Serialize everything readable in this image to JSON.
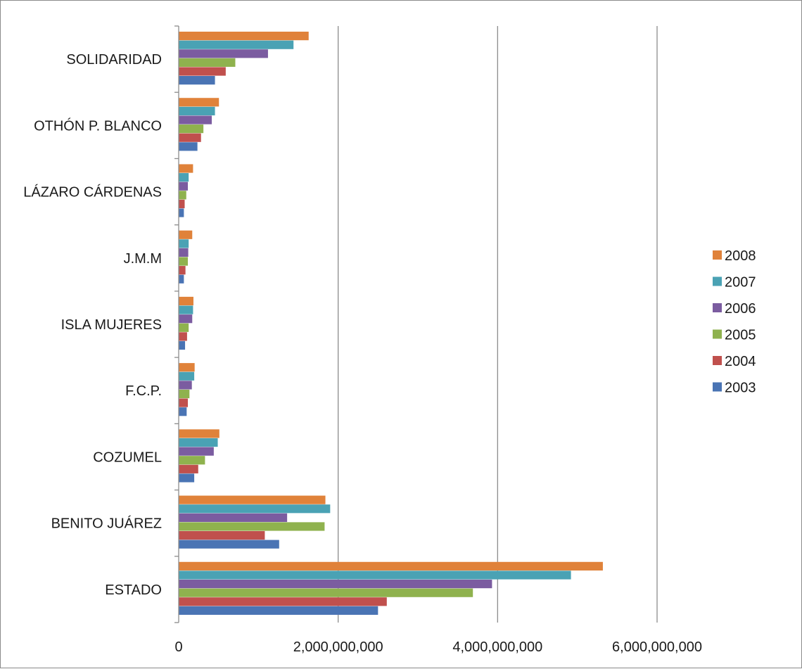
{
  "chart_data": {
    "type": "bar",
    "orientation": "horizontal",
    "title": "",
    "xlabel": "",
    "ylabel": "",
    "xlim": [
      0,
      6000000000
    ],
    "x_ticks": [
      0,
      2000000000,
      4000000000,
      6000000000
    ],
    "x_tick_labels": [
      "0",
      "2,000,000,000",
      "4,000,000,000",
      "6,000,000,000"
    ],
    "grid": "vertical major gridlines",
    "legend_position": "right",
    "categories": [
      "SOLIDARIDAD",
      "OTHÓN P. BLANCO",
      "LÁZARO CÁRDENAS",
      "J.M.M",
      "ISLA MUJERES",
      "F.C.P.",
      "COZUMEL",
      "BENITO JUÁREZ",
      "ESTADO"
    ],
    "series": [
      {
        "name": "2008",
        "color": "#E0823A",
        "values": [
          1630000000,
          505000000,
          180000000,
          170000000,
          185000000,
          200000000,
          510000000,
          1840000000,
          5320000000
        ]
      },
      {
        "name": "2007",
        "color": "#4AA2B4",
        "values": [
          1440000000,
          455000000,
          125000000,
          125000000,
          180000000,
          195000000,
          490000000,
          1900000000,
          4920000000
        ]
      },
      {
        "name": "2006",
        "color": "#7B5CA0",
        "values": [
          1120000000,
          415000000,
          115000000,
          120000000,
          170000000,
          165000000,
          440000000,
          1360000000,
          3930000000
        ]
      },
      {
        "name": "2005",
        "color": "#8FB24E",
        "values": [
          710000000,
          310000000,
          95000000,
          115000000,
          125000000,
          135000000,
          330000000,
          1830000000,
          3690000000
        ]
      },
      {
        "name": "2004",
        "color": "#C0504D",
        "values": [
          590000000,
          280000000,
          75000000,
          85000000,
          105000000,
          115000000,
          245000000,
          1080000000,
          2610000000
        ]
      },
      {
        "name": "2003",
        "color": "#4A74B4",
        "values": [
          455000000,
          235000000,
          65000000,
          65000000,
          80000000,
          100000000,
          195000000,
          1260000000,
          2500000000
        ]
      }
    ]
  }
}
